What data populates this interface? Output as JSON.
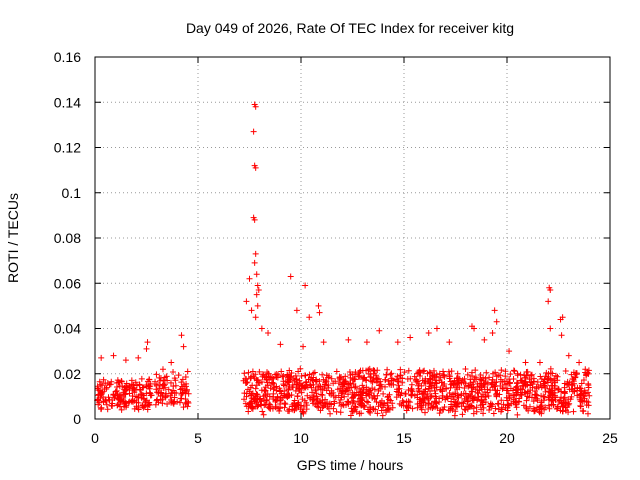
{
  "chart_data": {
    "type": "scatter",
    "title": "Day 049 of 2026, Rate Of TEC Index for receiver kitg",
    "xlabel": "GPS time / hours",
    "ylabel": "ROTI / TECUs",
    "xlim": [
      0,
      25
    ],
    "ylim": [
      0,
      0.16
    ],
    "xticks": [
      0,
      5,
      10,
      15,
      20,
      25
    ],
    "yticks": [
      0,
      0.02,
      0.04,
      0.06,
      0.08,
      0.1,
      0.12,
      0.14,
      0.16
    ],
    "xtick_labels": [
      "0",
      "5",
      "10",
      "15",
      "20",
      "25"
    ],
    "ytick_labels": [
      "0",
      "0.02",
      "0.04",
      "0.06",
      "0.08",
      "0.1",
      "0.12",
      "0.14",
      "0.16"
    ],
    "grid": true,
    "marker": "+",
    "series_color": "#ff0000",
    "series": [
      {
        "name": "ROTI",
        "segments": [
          {
            "start": 0.1,
            "end": 2.75,
            "base": 0.011,
            "spread": 0.008,
            "count": 180
          },
          {
            "start": 2.9,
            "end": 4.55,
            "base": 0.012,
            "spread": 0.009,
            "count": 90
          },
          {
            "start": 7.2,
            "end": 24.0,
            "base": 0.012,
            "spread": 0.011,
            "count": 1300
          }
        ],
        "points": [
          [
            0.3,
            0.027
          ],
          [
            0.9,
            0.028
          ],
          [
            1.5,
            0.026
          ],
          [
            2.1,
            0.027
          ],
          [
            2.55,
            0.034
          ],
          [
            2.5,
            0.031
          ],
          [
            3.3,
            0.022
          ],
          [
            3.7,
            0.025
          ],
          [
            4.2,
            0.037
          ],
          [
            4.3,
            0.032
          ],
          [
            4.5,
            0.021
          ],
          [
            7.35,
            0.052
          ],
          [
            7.5,
            0.062
          ],
          [
            7.6,
            0.048
          ],
          [
            7.75,
            0.139
          ],
          [
            7.8,
            0.138
          ],
          [
            7.7,
            0.127
          ],
          [
            7.75,
            0.112
          ],
          [
            7.8,
            0.111
          ],
          [
            7.7,
            0.089
          ],
          [
            7.75,
            0.088
          ],
          [
            7.8,
            0.073
          ],
          [
            7.75,
            0.069
          ],
          [
            7.85,
            0.064
          ],
          [
            7.9,
            0.059
          ],
          [
            7.95,
            0.057
          ],
          [
            7.85,
            0.055
          ],
          [
            7.9,
            0.05
          ],
          [
            7.8,
            0.045
          ],
          [
            8.1,
            0.04
          ],
          [
            8.4,
            0.038
          ],
          [
            9.0,
            0.033
          ],
          [
            9.5,
            0.063
          ],
          [
            9.8,
            0.048
          ],
          [
            10.2,
            0.059
          ],
          [
            10.1,
            0.032
          ],
          [
            10.4,
            0.045
          ],
          [
            10.85,
            0.05
          ],
          [
            10.9,
            0.047
          ],
          [
            11.1,
            0.034
          ],
          [
            12.3,
            0.035
          ],
          [
            13.2,
            0.034
          ],
          [
            13.8,
            0.039
          ],
          [
            14.7,
            0.034
          ],
          [
            15.3,
            0.036
          ],
          [
            16.2,
            0.038
          ],
          [
            16.6,
            0.04
          ],
          [
            17.2,
            0.034
          ],
          [
            18.3,
            0.041
          ],
          [
            18.4,
            0.04
          ],
          [
            18.9,
            0.035
          ],
          [
            19.4,
            0.048
          ],
          [
            19.5,
            0.043
          ],
          [
            19.3,
            0.038
          ],
          [
            20.1,
            0.03
          ],
          [
            20.9,
            0.025
          ],
          [
            21.6,
            0.025
          ],
          [
            22.05,
            0.058
          ],
          [
            22.1,
            0.057
          ],
          [
            22.0,
            0.052
          ],
          [
            22.1,
            0.04
          ],
          [
            22.6,
            0.044
          ],
          [
            22.7,
            0.045
          ],
          [
            22.65,
            0.037
          ],
          [
            23.0,
            0.028
          ],
          [
            23.5,
            0.025
          ],
          [
            23.8,
            0.022
          ],
          [
            23.95,
            0.015
          ]
        ]
      }
    ]
  }
}
